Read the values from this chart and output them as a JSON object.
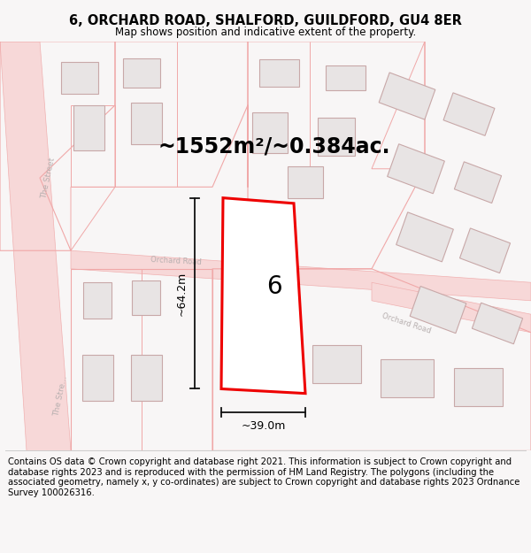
{
  "title": "6, ORCHARD ROAD, SHALFORD, GUILDFORD, GU4 8ER",
  "subtitle": "Map shows position and indicative extent of the property.",
  "area_text": "~1552m²/~0.384ac.",
  "label_6": "6",
  "dim_width": "~39.0m",
  "dim_height": "~64.2m",
  "footer": "Contains OS data © Crown copyright and database right 2021. This information is subject to Crown copyright and database rights 2023 and is reproduced with the permission of HM Land Registry. The polygons (including the associated geometry, namely x, y co-ordinates) are subject to Crown copyright and database rights 2023 Ordnance Survey 100026316.",
  "bg_color": "#f8f6f6",
  "map_bg": "#ffffff",
  "road_fill": "#f7d8d8",
  "road_edge": "#f0b0b0",
  "bld_fill": "#e8e4e4",
  "bld_edge": "#c8a8a8",
  "pink_line": "#f0a8a8",
  "road_label_color": "#b8b0b0",
  "dim_color": "#111111",
  "prop_color": "#ee0000",
  "title_fontsize": 10.5,
  "subtitle_fontsize": 8.5,
  "area_fontsize": 17,
  "label6_fontsize": 20,
  "dim_fontsize": 9,
  "footer_fontsize": 7.2
}
